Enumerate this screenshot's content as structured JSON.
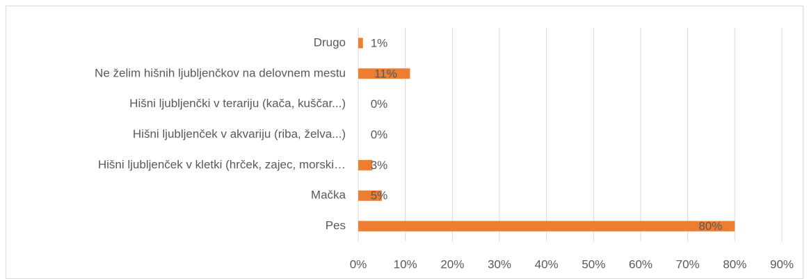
{
  "chart_data": {
    "type": "barh",
    "categories": [
      "Drugo",
      "Ne želim hišnih ljubljenčkov na delovnem mestu",
      "Hišni ljubljenčki v terariju (kača, kuščar...)",
      "Hišni ljubljenček v akvariju (riba, želva...)",
      "Hišni ljubljenček v kletki (hrček, zajec, morski…",
      "Mačka",
      "Pes"
    ],
    "values": [
      1,
      11,
      0,
      0,
      3,
      5,
      80
    ],
    "value_labels": [
      "1%",
      "11%",
      "0%",
      "0%",
      "3%",
      "5%",
      "80%"
    ],
    "color": "#ed7d31",
    "xlim": [
      0,
      90
    ],
    "xticks": [
      {
        "value": 0,
        "label": "0%"
      },
      {
        "value": 10,
        "label": "10%"
      },
      {
        "value": 20,
        "label": "20%"
      },
      {
        "value": 30,
        "label": "30%"
      },
      {
        "value": 40,
        "label": "40%"
      },
      {
        "value": 50,
        "label": "50%"
      },
      {
        "value": 60,
        "label": "60%"
      },
      {
        "value": 70,
        "label": "70%"
      },
      {
        "value": 80,
        "label": "80%"
      },
      {
        "value": 90,
        "label": "90%"
      }
    ],
    "grid": true
  }
}
